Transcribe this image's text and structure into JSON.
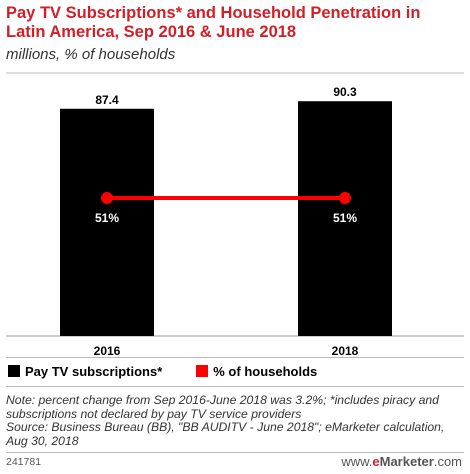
{
  "title": "Pay TV Subscriptions* and Household Penetration in Latin America, Sep 2016 & June 2018",
  "subtitle": "millions, % of households",
  "legend": [
    {
      "label": "Pay TV subscriptions*",
      "color": "#000000"
    },
    {
      "label": "% of households",
      "color": "#ff0000"
    }
  ],
  "note": "Note: percent change from Sep 2016-June 2018 was 3.2%; *includes piracy and subscriptions not declared by pay TV service providers",
  "source": "Source: Business Bureau (BB), \"BB AUDITV - June 2018\"; eMarketer calculation, Aug 30, 2018",
  "footer": {
    "chart_id": "241781",
    "brand_prefix": "www.",
    "brand_e": "e",
    "brand_name": "Marketer",
    "brand_suffix": ".com"
  },
  "chart_data": {
    "type": "bar",
    "categories": [
      "2016",
      "2018"
    ],
    "series": [
      {
        "name": "Pay TV subscriptions*",
        "type": "bar",
        "values": [
          87.4,
          90.3
        ],
        "labels": [
          "87.4",
          "90.3"
        ],
        "color": "#000000"
      },
      {
        "name": "% of households",
        "type": "line",
        "values": [
          51,
          51
        ],
        "labels": [
          "51%",
          "51%"
        ],
        "color": "#ff0000"
      }
    ],
    "ylim": [
      0,
      100
    ],
    "grid": false,
    "legend_position": "bottom-left"
  }
}
